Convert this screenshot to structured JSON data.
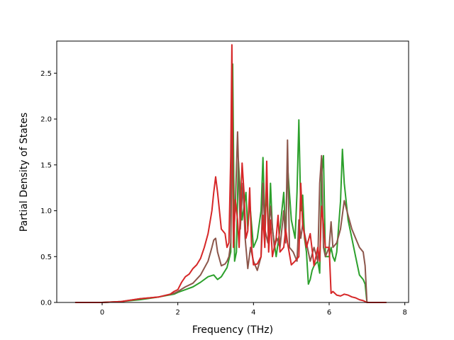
{
  "chart_data": {
    "type": "line",
    "title": "",
    "xlabel": "Frequency (THz)",
    "ylabel": "Partial Density of States",
    "xlim": [
      -1.2,
      8.1
    ],
    "ylim": [
      0,
      2.85
    ],
    "xticks": [
      0,
      2,
      4,
      6,
      8
    ],
    "xtick_labels": [
      "0",
      "2",
      "4",
      "6",
      "8"
    ],
    "yticks": [
      0.0,
      0.5,
      1.0,
      1.5,
      2.0,
      2.5
    ],
    "ytick_labels": [
      "0.0",
      "0.5",
      "1.0",
      "1.5",
      "2.0",
      "2.5"
    ],
    "grid": false,
    "legend": "none",
    "series": [
      {
        "color": "#2ca02c",
        "x": [
          -0.7,
          0.0,
          0.5,
          1.0,
          1.5,
          1.9,
          2.0,
          2.2,
          2.4,
          2.6,
          2.8,
          2.95,
          3.05,
          3.15,
          3.3,
          3.4,
          3.45,
          3.5,
          3.55,
          3.6,
          3.7,
          3.8,
          3.85,
          3.9,
          4.0,
          4.1,
          4.2,
          4.25,
          4.3,
          4.35,
          4.4,
          4.45,
          4.5,
          4.6,
          4.7,
          4.8,
          4.85,
          4.9,
          5.0,
          5.1,
          5.15,
          5.2,
          5.25,
          5.3,
          5.35,
          5.4,
          5.45,
          5.5,
          5.55,
          5.6,
          5.7,
          5.75,
          5.8,
          5.85,
          5.9,
          6.0,
          6.05,
          6.1,
          6.15,
          6.2,
          6.3,
          6.35,
          6.4,
          6.5,
          6.6,
          6.7,
          6.8,
          6.9,
          6.95,
          7.0,
          7.5
        ],
        "y": [
          0.0,
          0.0,
          0.01,
          0.03,
          0.06,
          0.09,
          0.11,
          0.14,
          0.17,
          0.22,
          0.28,
          0.3,
          0.25,
          0.28,
          0.38,
          0.55,
          2.6,
          0.45,
          0.55,
          1.55,
          0.9,
          1.2,
          0.8,
          1.1,
          0.6,
          0.7,
          1.0,
          1.58,
          0.9,
          1.2,
          0.7,
          1.3,
          0.8,
          0.5,
          0.8,
          1.2,
          0.7,
          1.5,
          0.9,
          0.7,
          1.2,
          1.99,
          1.0,
          1.17,
          0.7,
          0.55,
          0.2,
          0.25,
          0.35,
          0.4,
          0.45,
          0.32,
          1.4,
          1.6,
          0.5,
          0.5,
          0.6,
          0.5,
          0.45,
          0.55,
          1.1,
          1.67,
          1.3,
          0.9,
          0.7,
          0.5,
          0.3,
          0.25,
          0.2,
          0.0,
          0.0
        ]
      },
      {
        "color": "#8c564b",
        "x": [
          -0.7,
          0.0,
          0.5,
          1.0,
          1.5,
          1.9,
          2.0,
          2.2,
          2.4,
          2.6,
          2.8,
          2.9,
          2.95,
          3.0,
          3.05,
          3.15,
          3.25,
          3.3,
          3.35,
          3.4,
          3.43,
          3.47,
          3.52,
          3.58,
          3.65,
          3.72,
          3.78,
          3.85,
          3.92,
          4.0,
          4.1,
          4.2,
          4.25,
          4.3,
          4.38,
          4.45,
          4.55,
          4.62,
          4.7,
          4.8,
          4.85,
          4.9,
          4.95,
          5.05,
          5.15,
          5.2,
          5.25,
          5.3,
          5.4,
          5.5,
          5.6,
          5.7,
          5.75,
          5.8,
          5.85,
          5.9,
          6.0,
          6.05,
          6.1,
          6.2,
          6.3,
          6.4,
          6.5,
          6.6,
          6.7,
          6.8,
          6.9,
          6.95,
          7.0,
          7.5
        ],
        "y": [
          0.0,
          0.0,
          0.01,
          0.04,
          0.06,
          0.1,
          0.12,
          0.17,
          0.21,
          0.3,
          0.45,
          0.6,
          0.68,
          0.7,
          0.55,
          0.4,
          0.42,
          0.45,
          0.5,
          0.65,
          2.18,
          0.65,
          1.05,
          1.86,
          0.8,
          1.3,
          0.7,
          0.37,
          0.6,
          0.45,
          0.35,
          0.5,
          1.3,
          0.8,
          0.65,
          1.05,
          0.6,
          0.7,
          0.6,
          1.0,
          0.65,
          1.77,
          0.6,
          0.55,
          0.45,
          0.9,
          0.7,
          0.85,
          0.65,
          0.45,
          0.6,
          0.45,
          1.3,
          1.6,
          0.6,
          0.5,
          0.6,
          0.88,
          0.6,
          0.65,
          0.8,
          1.11,
          0.95,
          0.8,
          0.7,
          0.6,
          0.55,
          0.4,
          0.0,
          0.0
        ]
      },
      {
        "color": "#d62728",
        "x": [
          -0.7,
          0.0,
          0.5,
          1.0,
          1.5,
          1.8,
          1.9,
          2.0,
          2.1,
          2.2,
          2.3,
          2.4,
          2.5,
          2.6,
          2.7,
          2.8,
          2.9,
          2.95,
          3.0,
          3.05,
          3.15,
          3.25,
          3.3,
          3.35,
          3.4,
          3.43,
          3.47,
          3.52,
          3.58,
          3.62,
          3.7,
          3.75,
          3.8,
          3.85,
          3.9,
          3.95,
          4.0,
          4.1,
          4.2,
          4.25,
          4.3,
          4.35,
          4.4,
          4.45,
          4.5,
          4.6,
          4.65,
          4.7,
          4.8,
          4.85,
          4.9,
          5.0,
          5.1,
          5.2,
          5.25,
          5.3,
          5.4,
          5.5,
          5.6,
          5.7,
          5.75,
          5.8,
          5.85,
          5.9,
          6.0,
          6.05,
          6.1,
          6.2,
          6.3,
          6.35,
          6.4,
          6.5,
          6.6,
          6.7,
          6.8,
          6.9,
          7.0,
          7.5
        ],
        "y": [
          0.0,
          0.0,
          0.01,
          0.04,
          0.06,
          0.09,
          0.12,
          0.14,
          0.22,
          0.28,
          0.31,
          0.37,
          0.41,
          0.48,
          0.6,
          0.75,
          1.0,
          1.2,
          1.37,
          1.2,
          0.8,
          0.75,
          0.6,
          0.65,
          1.6,
          2.81,
          0.6,
          1.12,
          0.9,
          0.6,
          1.52,
          1.2,
          0.7,
          0.78,
          1.25,
          0.6,
          0.41,
          0.42,
          0.5,
          0.95,
          0.6,
          1.54,
          0.55,
          0.9,
          0.5,
          0.7,
          0.95,
          0.55,
          0.6,
          0.8,
          0.65,
          0.41,
          0.45,
          0.5,
          1.3,
          0.85,
          0.6,
          0.75,
          0.4,
          0.6,
          0.45,
          1.05,
          0.85,
          0.6,
          0.6,
          0.1,
          0.12,
          0.08,
          0.07,
          0.08,
          0.09,
          0.08,
          0.06,
          0.05,
          0.03,
          0.02,
          0.0,
          0.0
        ]
      }
    ]
  }
}
